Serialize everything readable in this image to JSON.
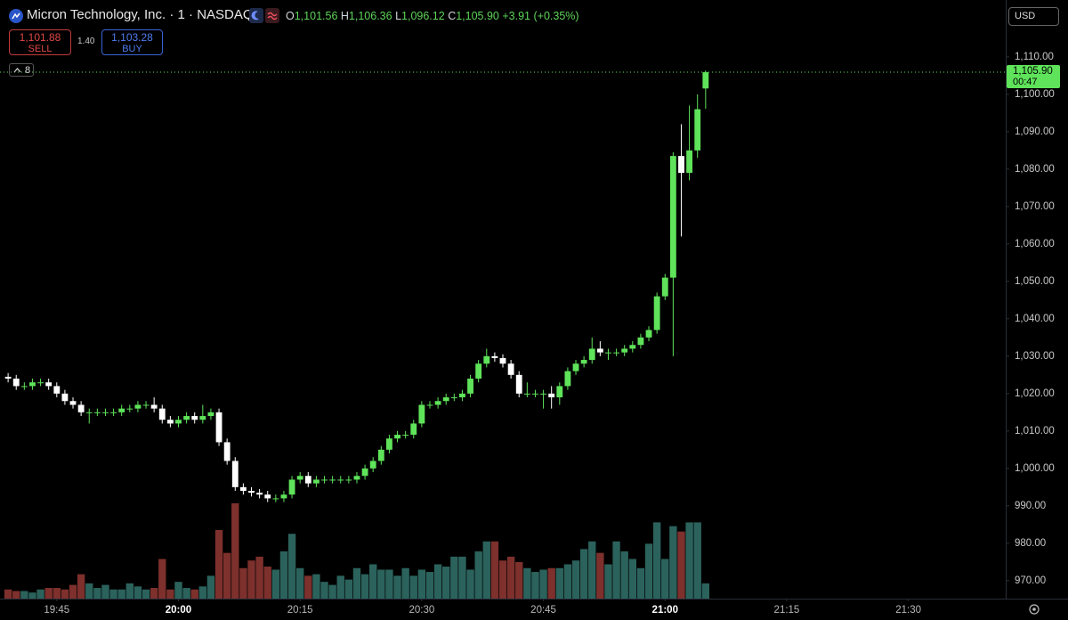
{
  "header": {
    "symbol": "Micron Technology, Inc. · 1 · NASDAQ",
    "ohlc": [
      {
        "key": "O",
        "value": "1,101.56"
      },
      {
        "key": "H",
        "value": "1,106.36"
      },
      {
        "key": "L",
        "value": "1,096.12"
      },
      {
        "key": "C",
        "value": "1,105.90"
      }
    ],
    "change": "+3.91 (+0.35%)",
    "sell_price": "1,101.88",
    "sell_label": "SELL",
    "spread": "1.40",
    "buy_price": "1,103.28",
    "buy_label": "BUY",
    "indicator_count": "8",
    "currency": "USD"
  },
  "chart_data": {
    "type": "candlestick",
    "x": [
      1179,
      1180,
      1181,
      1182,
      1183,
      1184,
      1185,
      1186,
      1187,
      1188,
      1189,
      1190,
      1191,
      1192,
      1193,
      1194,
      1195,
      1196,
      1197,
      1198,
      1199,
      1200,
      1201,
      1202,
      1203,
      1204,
      1205,
      1206,
      1207,
      1208,
      1209,
      1210,
      1211,
      1212,
      1213,
      1214,
      1215,
      1216,
      1217,
      1218,
      1219,
      1220,
      1221,
      1222,
      1223,
      1224,
      1225,
      1226,
      1227,
      1228,
      1229,
      1230,
      1231,
      1232,
      1233,
      1234,
      1235,
      1236,
      1237,
      1238,
      1239,
      1240,
      1241,
      1242,
      1243,
      1244,
      1245,
      1246,
      1247,
      1248,
      1249,
      1250,
      1251,
      1252,
      1253,
      1254,
      1255,
      1256,
      1257,
      1258,
      1259,
      1260,
      1261,
      1262,
      1263,
      1264,
      1265
    ],
    "open": [
      1024.5,
      1024,
      1022,
      1022,
      1023,
      1023,
      1022,
      1020,
      1018,
      1017,
      1015,
      1015,
      1015,
      1015,
      1015,
      1016,
      1016,
      1017,
      1017,
      1016,
      1013,
      1012,
      1013,
      1014,
      1013,
      1014,
      1015,
      1007,
      1002,
      995,
      994,
      993.5,
      993,
      992,
      992,
      993,
      997,
      998,
      996,
      997,
      997,
      997,
      997,
      997,
      998,
      1000,
      1002,
      1005,
      1008,
      1009,
      1009,
      1012,
      1017,
      1017,
      1018,
      1019,
      1019,
      1020,
      1024,
      1028,
      1030,
      1029.5,
      1028,
      1025,
      1020,
      1020,
      1020,
      1020,
      1019,
      1022,
      1026,
      1028,
      1029,
      1032,
      1031,
      1031,
      1031,
      1032,
      1033,
      1035,
      1037,
      1046,
      1051,
      1083.5,
      1079,
      1085,
      1101.56
    ],
    "high": [
      1025.5,
      1025,
      1023,
      1024,
      1024,
      1024,
      1023,
      1021,
      1019,
      1018,
      1016,
      1016,
      1016,
      1016,
      1017,
      1017,
      1018,
      1018,
      1019,
      1017,
      1014,
      1014,
      1015,
      1015,
      1017,
      1016,
      1016,
      1008,
      1003,
      996,
      995,
      994.5,
      994,
      993,
      994,
      998,
      999,
      999,
      998,
      998,
      998,
      998,
      998,
      999,
      1001,
      1003,
      1006,
      1009,
      1010,
      1010,
      1013,
      1018,
      1018,
      1019,
      1020,
      1020,
      1021,
      1025,
      1029,
      1032,
      1031,
      1030.5,
      1029,
      1026,
      1023,
      1021,
      1021,
      1022,
      1023,
      1027,
      1029,
      1030,
      1035,
      1034,
      1032,
      1032,
      1033,
      1034,
      1036,
      1038,
      1047,
      1052,
      1084.5,
      1092,
      1097,
      1100,
      1106.36
    ],
    "low": [
      1023,
      1021,
      1021,
      1021,
      1022,
      1021,
      1019,
      1017,
      1016,
      1014,
      1012,
      1014,
      1014,
      1014,
      1014,
      1015,
      1015,
      1016,
      1015,
      1012,
      1011,
      1011,
      1012,
      1012,
      1012,
      1013,
      1006,
      1001,
      994,
      993,
      992.5,
      992,
      991,
      991,
      991,
      992,
      996,
      995,
      995,
      996,
      996,
      996,
      996,
      996,
      997,
      999,
      1001,
      1004,
      1007,
      1008,
      1008,
      1011,
      1016,
      1016,
      1017,
      1018,
      1018,
      1019,
      1023,
      1027,
      1028.5,
      1027,
      1024,
      1019,
      1019,
      1019,
      1016,
      1016,
      1017,
      1021,
      1025,
      1027,
      1028,
      1030,
      1029,
      1030,
      1030,
      1031,
      1032,
      1034,
      1036,
      1045,
      1030,
      1062,
      1077,
      1083,
      1096.12
    ],
    "close": [
      1024,
      1022,
      1022,
      1023,
      1023,
      1022,
      1020,
      1018,
      1017,
      1015,
      1015,
      1015,
      1015,
      1015,
      1016,
      1016,
      1017,
      1017,
      1016,
      1013,
      1012,
      1013,
      1014,
      1013,
      1014,
      1015,
      1007,
      1002,
      995,
      994,
      993.5,
      993,
      992,
      992,
      993,
      997,
      998,
      996,
      997,
      997,
      997,
      997,
      997,
      998,
      1000,
      1002,
      1005,
      1008,
      1009,
      1009,
      1012,
      1017,
      1017,
      1018,
      1019,
      1019,
      1020,
      1024,
      1028,
      1030,
      1029.5,
      1028,
      1025,
      1020,
      1020,
      1020,
      1020,
      1019,
      1022,
      1026,
      1028,
      1029,
      1032,
      1031,
      1031,
      1031,
      1032,
      1033,
      1035,
      1037,
      1046,
      1051,
      1083.5,
      1079,
      1085,
      1096,
      1105.9
    ],
    "volume": [
      12,
      10,
      10,
      8,
      12,
      14,
      14,
      12,
      18,
      32,
      20,
      14,
      18,
      12,
      12,
      20,
      16,
      12,
      14,
      52,
      12,
      22,
      14,
      12,
      16,
      30,
      90,
      60,
      125,
      40,
      50,
      55,
      42,
      38,
      62,
      85,
      40,
      30,
      32,
      22,
      18,
      30,
      25,
      40,
      32,
      45,
      38,
      38,
      30,
      40,
      30,
      38,
      35,
      45,
      42,
      55,
      55,
      38,
      62,
      75,
      75,
      50,
      55,
      48,
      40,
      35,
      38,
      40,
      40,
      45,
      50,
      65,
      75,
      60,
      45,
      75,
      62,
      52,
      40,
      72,
      100,
      52,
      95,
      88,
      100,
      100,
      20
    ],
    "up_color": "#5fe35a",
    "down_color": "#ffffff",
    "volume_up_color": "#2b625c",
    "volume_down_color": "#7d302c",
    "xlim": [
      1178,
      1302
    ],
    "xticks": [
      {
        "value": 1185,
        "label": "19:45"
      },
      {
        "value": 1200,
        "label": "20:00"
      },
      {
        "value": 1215,
        "label": "20:15"
      },
      {
        "value": 1230,
        "label": "20:30"
      },
      {
        "value": 1245,
        "label": "20:45"
      },
      {
        "value": 1260,
        "label": "21:00"
      },
      {
        "value": 1275,
        "label": "21:15"
      },
      {
        "value": 1290,
        "label": "21:30"
      }
    ],
    "ylim": [
      965.2,
      1125.2
    ],
    "yticks": [
      {
        "value": 970,
        "label": "970.00"
      },
      {
        "value": 980,
        "label": "980.00"
      },
      {
        "value": 990,
        "label": "990.00"
      },
      {
        "value": 1000,
        "label": "1,000.00"
      },
      {
        "value": 1010,
        "label": "1,010.00"
      },
      {
        "value": 1020,
        "label": "1,020.00"
      },
      {
        "value": 1030,
        "label": "1,030.00"
      },
      {
        "value": 1040,
        "label": "1,040.00"
      },
      {
        "value": 1050,
        "label": "1,050.00"
      },
      {
        "value": 1060,
        "label": "1,060.00"
      },
      {
        "value": 1070,
        "label": "1,070.00"
      },
      {
        "value": 1080,
        "label": "1,080.00"
      },
      {
        "value": 1090,
        "label": "1,090.00"
      },
      {
        "value": 1100,
        "label": "1,100.00"
      },
      {
        "value": 1110,
        "label": "1,110.00"
      }
    ],
    "last_price": {
      "value": 1105.9,
      "label": "1,105.90",
      "countdown": "00:47"
    },
    "grid": false
  }
}
